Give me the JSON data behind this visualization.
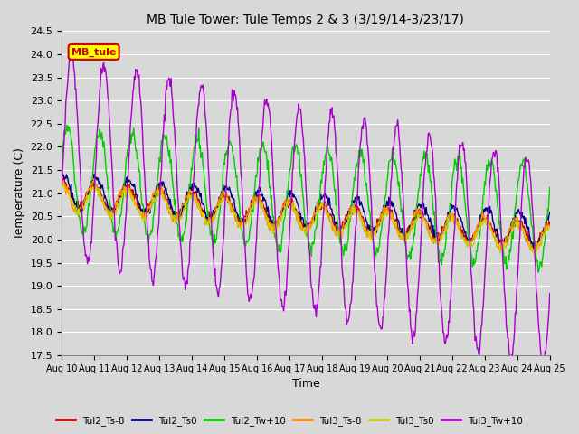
{
  "title": "MB Tule Tower: Tule Temps 2 & 3 (3/19/14-3/23/17)",
  "xlabel": "Time",
  "ylabel": "Temperature (C)",
  "ylim": [
    17.5,
    24.5
  ],
  "xlim": [
    0,
    15
  ],
  "x_tick_labels": [
    "Aug 10",
    "Aug 11",
    "Aug 12",
    "Aug 13",
    "Aug 14",
    "Aug 15",
    "Aug 16",
    "Aug 17",
    "Aug 18",
    "Aug 19",
    "Aug 20",
    "Aug 21",
    "Aug 22",
    "Aug 23",
    "Aug 24",
    "Aug 25"
  ],
  "yticks": [
    17.5,
    18.0,
    18.5,
    19.0,
    19.5,
    20.0,
    20.5,
    21.0,
    21.5,
    22.0,
    22.5,
    23.0,
    23.5,
    24.0,
    24.5
  ],
  "bg_color": "#d8d8d8",
  "plot_bg_color": "#d8d8d8",
  "grid_color": "#ffffff",
  "legend_label": "MB_tule",
  "legend_bg": "#ffff00",
  "legend_border": "#cc0000",
  "line_colors": {
    "Tul2_Ts-8": "#cc0000",
    "Tul2_Ts0": "#000080",
    "Tul2_Tw+10": "#00cc00",
    "Tul3_Ts-8": "#ff8800",
    "Tul3_Ts0": "#cccc00",
    "Tul3_Tw+10": "#aa00cc"
  },
  "figsize": [
    6.4,
    4.8
  ],
  "dpi": 100
}
